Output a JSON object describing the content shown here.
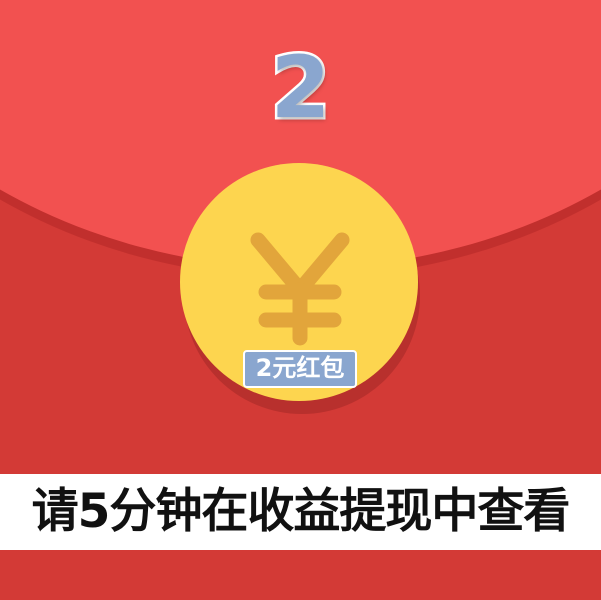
{
  "top_number": "2",
  "coin": {
    "icon": "yen-icon",
    "label": "2元红包"
  },
  "banner": {
    "text": "请5分钟在收益提现中查看"
  },
  "colors": {
    "envelope_top": "#f25150",
    "envelope_body": "#d33a36",
    "coin": "#fdd54f",
    "yen_symbol": "#e2a53b",
    "label_bg": "#8aa6cf"
  }
}
